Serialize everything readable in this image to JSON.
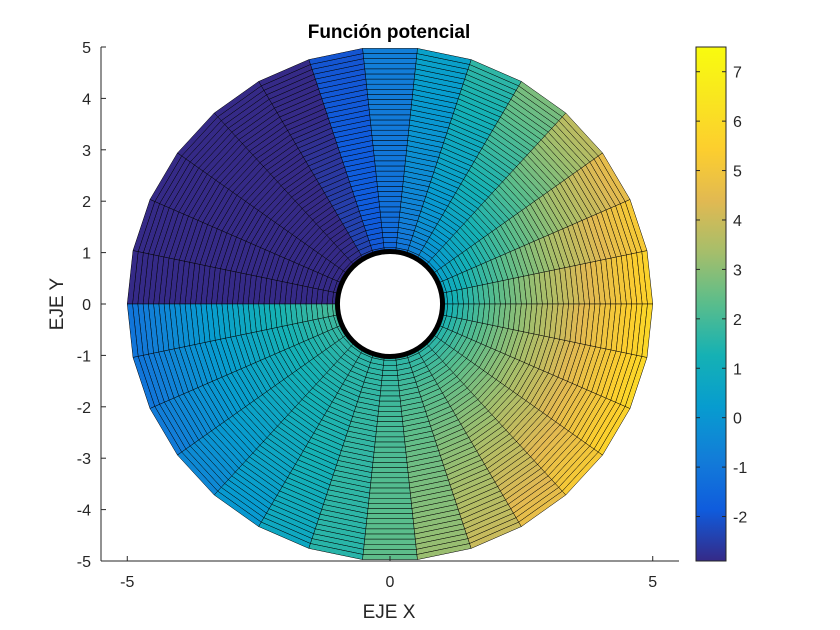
{
  "chart_data": {
    "type": "surface",
    "view": "2D (top view)",
    "title": "Función potencial",
    "xlabel": "EJE X",
    "ylabel": "EJE Y",
    "xlim": [
      -5.5,
      5.5
    ],
    "ylim": [
      -5,
      5
    ],
    "xticks": [
      -5,
      0,
      5
    ],
    "yticks": [
      -5,
      -4,
      -3,
      -2,
      -1,
      0,
      1,
      2,
      3,
      4,
      5
    ],
    "grid": false,
    "domain": {
      "shape": "annulus",
      "inner_radius": 1,
      "outer_radius": 5,
      "radial_divisions": 40,
      "angular_divisions": 30
    },
    "color_function": "r*cos(theta) + 0.5*(log(r) - 2*theta)",
    "colorbar": {
      "limits": [
        -2.9,
        7.5
      ],
      "ticks": [
        -2,
        -1,
        0,
        1,
        2,
        3,
        4,
        5,
        6,
        7
      ],
      "colormap": "parula",
      "placement": "right"
    }
  }
}
